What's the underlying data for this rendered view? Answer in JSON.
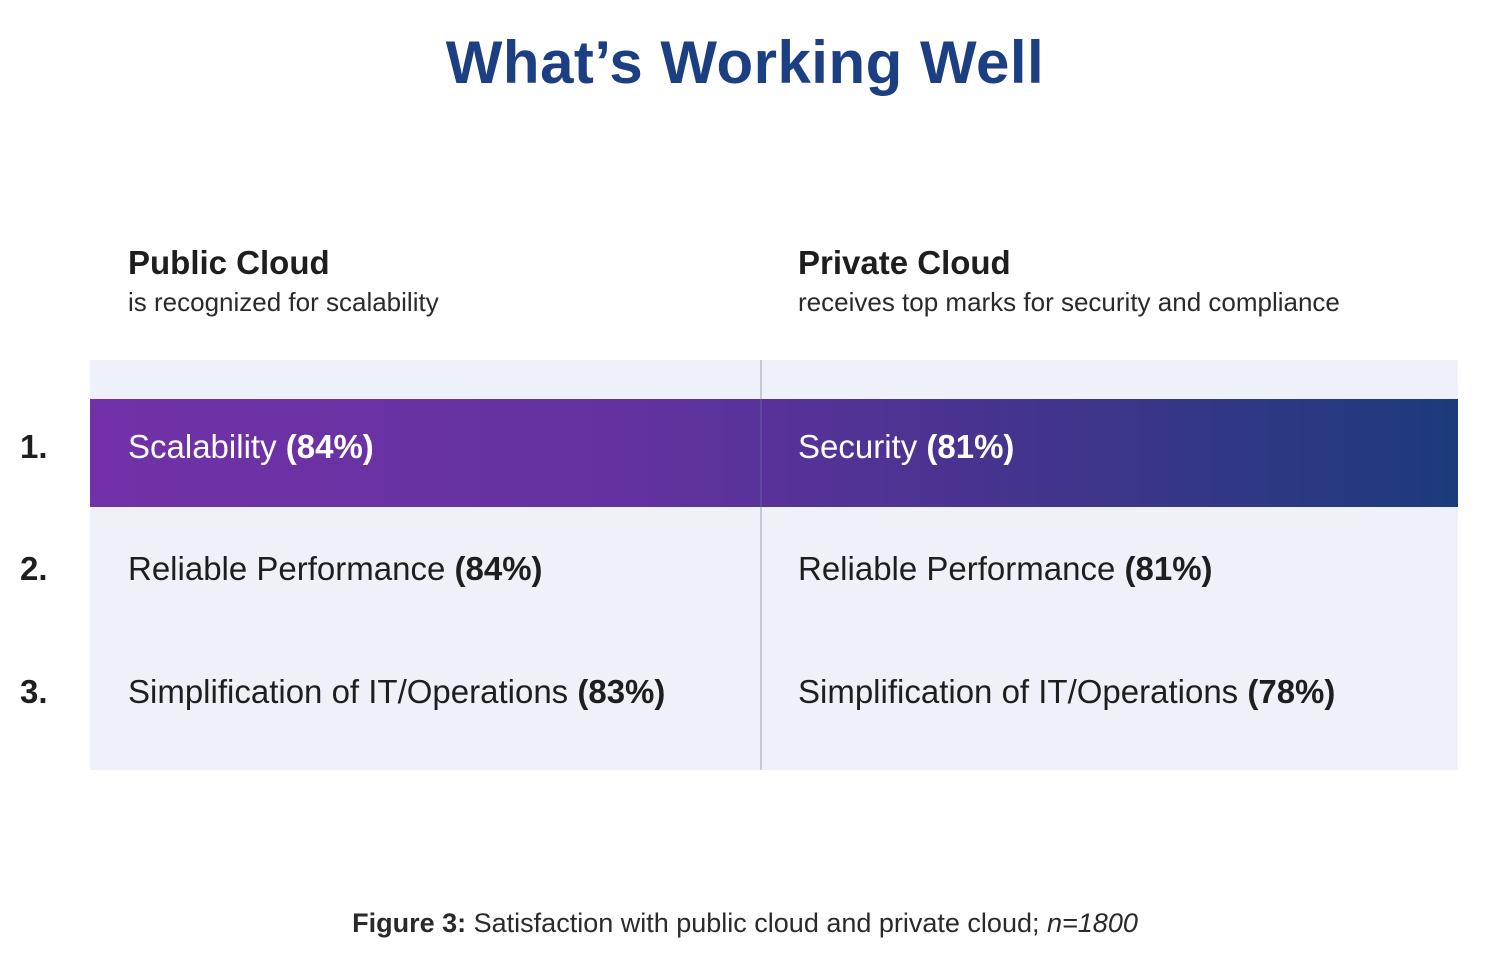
{
  "title": "What’s Working Well",
  "colors": {
    "title": "#1b3f82",
    "panel": "#eef2f8",
    "highlight_start": "#7231a8",
    "highlight_end": "#1c3b7b"
  },
  "columns": [
    {
      "heading": "Public Cloud",
      "subheading": "is recognized for scalability"
    },
    {
      "heading": "Private Cloud",
      "subheading": "receives top marks for security and compliance"
    }
  ],
  "rows": [
    {
      "rank": "1.",
      "public": {
        "label": "Scalability",
        "pct": "(84%)"
      },
      "private": {
        "label": "Security",
        "pct": "(81%)"
      }
    },
    {
      "rank": "2.",
      "public": {
        "label": "Reliable Performance",
        "pct": "(84%)"
      },
      "private": {
        "label": "Reliable Performance",
        "pct": "(81%)"
      }
    },
    {
      "rank": "3.",
      "public": {
        "label": "Simplification of IT/Operations",
        "pct": "(83%)"
      },
      "private": {
        "label": "Simplification of IT/Operations",
        "pct": "(78%)"
      }
    }
  ],
  "caption": {
    "figure": "Figure 3:",
    "text": "Satisfaction with public cloud and private cloud;",
    "n": "n=1800"
  }
}
